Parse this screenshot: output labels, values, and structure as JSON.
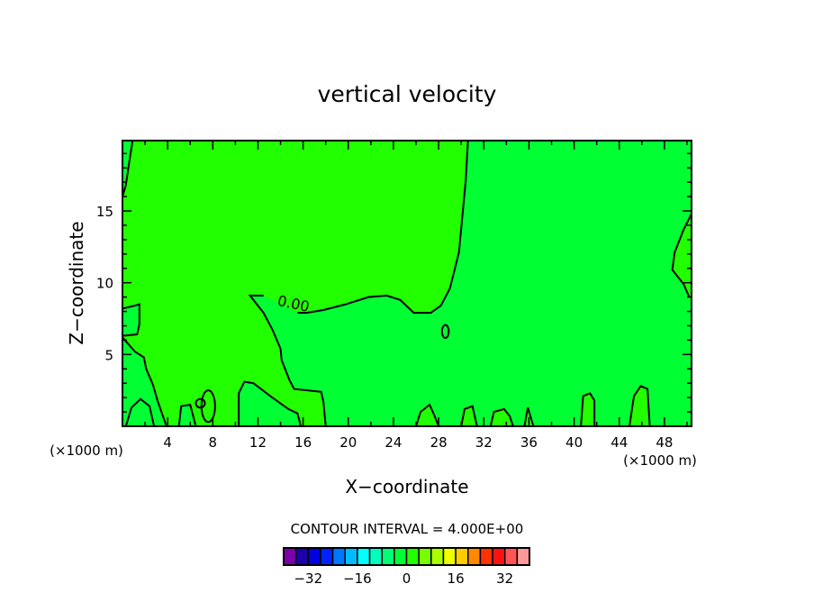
{
  "chart_data": {
    "type": "contour",
    "title": "vertical velocity",
    "xlabel": "X−coordinate",
    "ylabel": "Z−coordinate",
    "x_unit_left": "(×1000 m)",
    "x_unit_right": "(×1000 m)",
    "xlim": [
      0,
      50.4
    ],
    "ylim": [
      0,
      19.9
    ],
    "xticks": [
      4,
      8,
      12,
      16,
      20,
      24,
      28,
      32,
      36,
      40,
      44,
      48
    ],
    "yticks": [
      5,
      10,
      15
    ],
    "contour_interval_text": "CONTOUR INTERVAL = 4.000E+00",
    "contour_label": "0.00",
    "background_level_color": "#00ff33",
    "positive_level_color": "#22ff00",
    "positive_region": [
      [
        0.9,
        19.9
      ],
      [
        30.6,
        19.9
      ],
      [
        30.4,
        17.1
      ],
      [
        29.8,
        12.1
      ],
      [
        29.0,
        9.6
      ],
      [
        28.2,
        8.4
      ],
      [
        27.3,
        7.9
      ],
      [
        25.8,
        7.9
      ],
      [
        24.6,
        8.8
      ],
      [
        23.4,
        9.1
      ],
      [
        21.8,
        9.0
      ],
      [
        19.8,
        8.5
      ],
      [
        17.8,
        8.1
      ],
      [
        16.3,
        7.9
      ],
      [
        15.5,
        7.9
      ],
      [
        12.5,
        9.1
      ],
      [
        11.3,
        9.1
      ],
      [
        11.6,
        8.8
      ],
      [
        12.5,
        7.9
      ],
      [
        13.3,
        6.7
      ],
      [
        14.0,
        5.4
      ],
      [
        14.1,
        4.6
      ],
      [
        14.8,
        3.2
      ],
      [
        15.2,
        2.6
      ],
      [
        17.6,
        2.4
      ],
      [
        17.8,
        1.7
      ],
      [
        18.0,
        0
      ],
      [
        3.9,
        0
      ],
      [
        3.5,
        0.9
      ],
      [
        3.1,
        1.8
      ],
      [
        2.7,
        2.9
      ],
      [
        2.1,
        4.0
      ],
      [
        1.9,
        4.8
      ],
      [
        1.1,
        5.2
      ],
      [
        0,
        6.2
      ],
      [
        0,
        6.3
      ],
      [
        1.3,
        6.4
      ],
      [
        1.5,
        7.1
      ],
      [
        1.5,
        8.5
      ],
      [
        1.1,
        8.4
      ],
      [
        0,
        8.2
      ],
      [
        0,
        16
      ],
      [
        0.3,
        16.8
      ],
      [
        0.6,
        18.4
      ]
    ],
    "contours": [
      {
        "level": 0,
        "points": [
          [
            30.6,
            19.9
          ],
          [
            30.4,
            17.1
          ],
          [
            29.8,
            12.1
          ],
          [
            29.0,
            9.6
          ],
          [
            28.2,
            8.4
          ],
          [
            27.3,
            7.9
          ],
          [
            25.8,
            7.9
          ],
          [
            24.6,
            8.8
          ],
          [
            23.4,
            9.1
          ],
          [
            21.8,
            9.0
          ],
          [
            19.8,
            8.5
          ],
          [
            17.8,
            8.1
          ],
          [
            16.3,
            7.9
          ],
          [
            15.5,
            7.9
          ]
        ]
      },
      {
        "level": 0,
        "points": [
          [
            12.5,
            9.1
          ],
          [
            11.3,
            9.1
          ],
          [
            11.6,
            8.8
          ],
          [
            12.5,
            7.9
          ],
          [
            13.3,
            6.7
          ],
          [
            14.0,
            5.4
          ],
          [
            14.1,
            4.6
          ],
          [
            14.8,
            3.2
          ],
          [
            15.2,
            2.6
          ],
          [
            17.6,
            2.4
          ],
          [
            17.8,
            1.7
          ],
          [
            18.0,
            0
          ]
        ]
      },
      {
        "level": 0,
        "points": [
          [
            0.9,
            19.9
          ],
          [
            0.6,
            18.4
          ],
          [
            0.3,
            16.8
          ],
          [
            0,
            16
          ]
        ]
      },
      {
        "level": 0,
        "points": [
          [
            0,
            8.2
          ],
          [
            1.1,
            8.4
          ],
          [
            1.5,
            8.5
          ],
          [
            1.5,
            7.1
          ],
          [
            1.3,
            6.4
          ],
          [
            0,
            6.3
          ]
        ]
      },
      {
        "level": 0,
        "points": [
          [
            0,
            6.2
          ],
          [
            1.1,
            5.2
          ],
          [
            1.9,
            4.8
          ],
          [
            2.1,
            4.0
          ],
          [
            2.7,
            2.9
          ],
          [
            3.1,
            1.8
          ],
          [
            3.5,
            0.9
          ],
          [
            3.9,
            0
          ]
        ]
      },
      {
        "level": 0,
        "points": [
          [
            50.4,
            14.8
          ],
          [
            49.7,
            13.7
          ],
          [
            48.9,
            12.1
          ],
          [
            48.7,
            10.9
          ],
          [
            49.7,
            9.9
          ],
          [
            50.2,
            9.0
          ]
        ]
      },
      {
        "level": 0,
        "points": [
          [
            10.3,
            0
          ],
          [
            10.3,
            2.3
          ],
          [
            10.8,
            3.1
          ],
          [
            11.6,
            3.0
          ],
          [
            13.1,
            2.1
          ],
          [
            14.7,
            1.2
          ],
          [
            15.5,
            0.9
          ],
          [
            15.8,
            0
          ]
        ]
      },
      {
        "level": 0,
        "points": [
          [
            44.9,
            0
          ],
          [
            45.3,
            2.1
          ],
          [
            45.9,
            2.8
          ],
          [
            46.5,
            2.6
          ],
          [
            46.7,
            0
          ]
        ]
      },
      {
        "level": 0,
        "points": [
          [
            40.6,
            0
          ],
          [
            40.8,
            2.1
          ],
          [
            41.4,
            2.3
          ],
          [
            41.8,
            1.8
          ],
          [
            41.8,
            0
          ]
        ]
      },
      {
        "level": 0,
        "points": [
          [
            0.3,
            0
          ],
          [
            0.8,
            1.3
          ],
          [
            1.6,
            1.9
          ],
          [
            2.4,
            1.4
          ],
          [
            2.8,
            0
          ]
        ]
      },
      {
        "level": 0,
        "points": [
          [
            5.0,
            0
          ],
          [
            5.2,
            1.4
          ],
          [
            6.0,
            1.5
          ],
          [
            6.5,
            0
          ]
        ]
      },
      {
        "level": 0,
        "points": [
          [
            26.0,
            0
          ],
          [
            26.4,
            1.0
          ],
          [
            27.2,
            1.5
          ],
          [
            27.6,
            0.8
          ],
          [
            28.0,
            0
          ]
        ]
      },
      {
        "level": 0,
        "points": [
          [
            30.0,
            0
          ],
          [
            30.3,
            1.2
          ],
          [
            31.0,
            1.4
          ],
          [
            31.4,
            0
          ]
        ]
      },
      {
        "level": 0,
        "points": [
          [
            32.6,
            0
          ],
          [
            32.9,
            1.0
          ],
          [
            33.8,
            1.2
          ],
          [
            34.3,
            0.7
          ],
          [
            34.6,
            0
          ]
        ]
      },
      {
        "level": 0,
        "points": [
          [
            35.6,
            0
          ],
          [
            35.9,
            1.3
          ],
          [
            36.4,
            0
          ]
        ]
      }
    ],
    "closed_contours": [
      {
        "level": 0,
        "cx": 28.6,
        "cy": 6.6,
        "rx": 0.3,
        "ry": 0.45
      },
      {
        "level": 0,
        "cx": 7.6,
        "cy": 1.4,
        "rx": 0.6,
        "ry": 1.1
      },
      {
        "level": 0,
        "cx": 6.9,
        "cy": 1.6,
        "rx": 0.4,
        "ry": 0.3
      }
    ],
    "colorbar": {
      "levels": [
        -40,
        -36,
        -32,
        -28,
        -24,
        -20,
        -16,
        -12,
        -8,
        -4,
        0,
        4,
        8,
        12,
        16,
        20,
        24,
        28,
        32,
        36,
        40
      ],
      "colors": [
        "#7a00a8",
        "#1c00aa",
        "#0000e0",
        "#0022ff",
        "#0077ff",
        "#00bbff",
        "#00ffff",
        "#00ffbb",
        "#00ff77",
        "#00ff33",
        "#22ff00",
        "#77ff00",
        "#aaff00",
        "#eeff00",
        "#ffcc00",
        "#ff8800",
        "#ff3300",
        "#ff1111",
        "#ff5555",
        "#ff9999"
      ],
      "tick_labels": [
        "−32",
        "−16",
        "0",
        "16",
        "32"
      ],
      "tick_values": [
        -32,
        -16,
        0,
        16,
        32
      ]
    }
  }
}
